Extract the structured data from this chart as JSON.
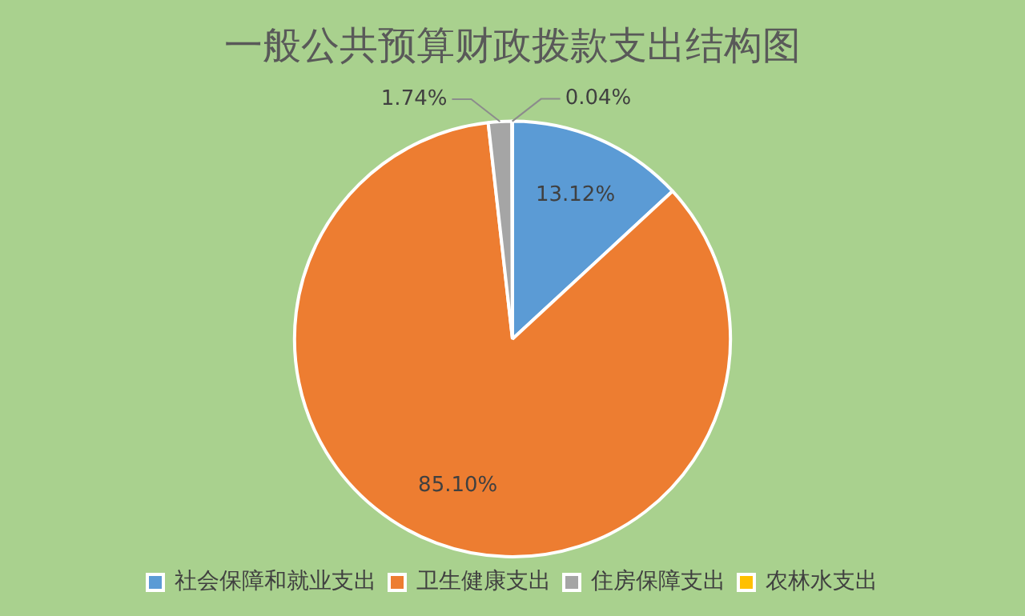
{
  "chart_data": {
    "type": "pie",
    "title": "一般公共预算财政拨款支出结构图",
    "categories": [
      "社会保障和就业支出",
      "卫生健康支出",
      "住房保障支出",
      "农林水支出"
    ],
    "values": [
      13.12,
      85.1,
      1.74,
      0.04
    ],
    "colors": [
      "#5b9bd5",
      "#ed7d31",
      "#a5a5a5",
      "#ffc000"
    ],
    "value_labels": [
      "13.12%",
      "85.10%",
      "1.74%",
      "0.04%"
    ],
    "legend": "bottom"
  }
}
